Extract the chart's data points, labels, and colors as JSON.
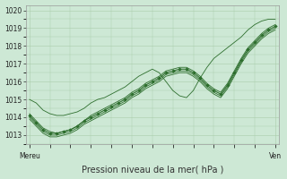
{
  "background_color": "#cde8d5",
  "grid_color": "#aaccaa",
  "line_color": "#2d6e2d",
  "marker_color": "#2d6e2d",
  "title": "Pression niveau de la mer( hPa )",
  "xlabel_left": "Mereu",
  "xlabel_right": "Ven",
  "ylim": [
    1012.5,
    1020.3
  ],
  "yticks": [
    1013,
    1014,
    1015,
    1016,
    1017,
    1018,
    1019,
    1020
  ],
  "n_points": 37,
  "series": [
    [
      1015.0,
      1014.8,
      1014.4,
      1014.2,
      1014.1,
      1014.1,
      1014.2,
      1014.3,
      1014.5,
      1014.8,
      1015.0,
      1015.1,
      1015.3,
      1015.5,
      1015.7,
      1016.0,
      1016.3,
      1016.5,
      1016.7,
      1016.5,
      1016.0,
      1015.5,
      1015.2,
      1015.1,
      1015.5,
      1016.2,
      1016.8,
      1017.3,
      1017.6,
      1017.9,
      1018.2,
      1018.5,
      1018.9,
      1019.2,
      1019.4,
      1019.5,
      1019.5
    ],
    [
      1014.1,
      1013.7,
      1013.3,
      1013.1,
      1013.1,
      1013.2,
      1013.3,
      1013.5,
      1013.8,
      1014.0,
      1014.2,
      1014.4,
      1014.6,
      1014.8,
      1015.0,
      1015.3,
      1015.5,
      1015.8,
      1016.0,
      1016.2,
      1016.5,
      1016.6,
      1016.7,
      1016.7,
      1016.5,
      1016.2,
      1015.8,
      1015.5,
      1015.3,
      1015.8,
      1016.5,
      1017.2,
      1017.8,
      1018.2,
      1018.6,
      1018.9,
      1019.1
    ],
    [
      1014.0,
      1013.6,
      1013.2,
      1013.0,
      1013.0,
      1013.1,
      1013.2,
      1013.4,
      1013.7,
      1013.9,
      1014.1,
      1014.3,
      1014.5,
      1014.7,
      1014.9,
      1015.2,
      1015.4,
      1015.7,
      1015.9,
      1016.1,
      1016.4,
      1016.5,
      1016.6,
      1016.6,
      1016.4,
      1016.1,
      1015.7,
      1015.4,
      1015.2,
      1015.7,
      1016.4,
      1017.1,
      1017.7,
      1018.1,
      1018.5,
      1018.8,
      1019.0
    ],
    [
      1014.2,
      1013.8,
      1013.4,
      1013.2,
      1013.1,
      1013.2,
      1013.3,
      1013.5,
      1013.8,
      1014.1,
      1014.3,
      1014.5,
      1014.7,
      1014.9,
      1015.1,
      1015.4,
      1015.6,
      1015.9,
      1016.1,
      1016.3,
      1016.6,
      1016.7,
      1016.8,
      1016.8,
      1016.6,
      1016.3,
      1015.9,
      1015.6,
      1015.4,
      1015.9,
      1016.6,
      1017.3,
      1017.9,
      1018.3,
      1018.7,
      1019.0,
      1019.2
    ],
    [
      1013.9,
      1013.5,
      1013.1,
      1012.9,
      1012.9,
      1013.0,
      1013.1,
      1013.3,
      1013.6,
      1013.8,
      1014.0,
      1014.2,
      1014.4,
      1014.6,
      1014.8,
      1015.1,
      1015.3,
      1015.6,
      1015.8,
      1016.0,
      1016.3,
      1016.4,
      1016.5,
      1016.5,
      1016.3,
      1016.0,
      1015.6,
      1015.3,
      1015.1,
      1015.6,
      1016.3,
      1017.0,
      1017.6,
      1018.0,
      1018.4,
      1018.7,
      1018.9
    ]
  ],
  "highlighted_series_idx": 1,
  "marker_step": 1
}
